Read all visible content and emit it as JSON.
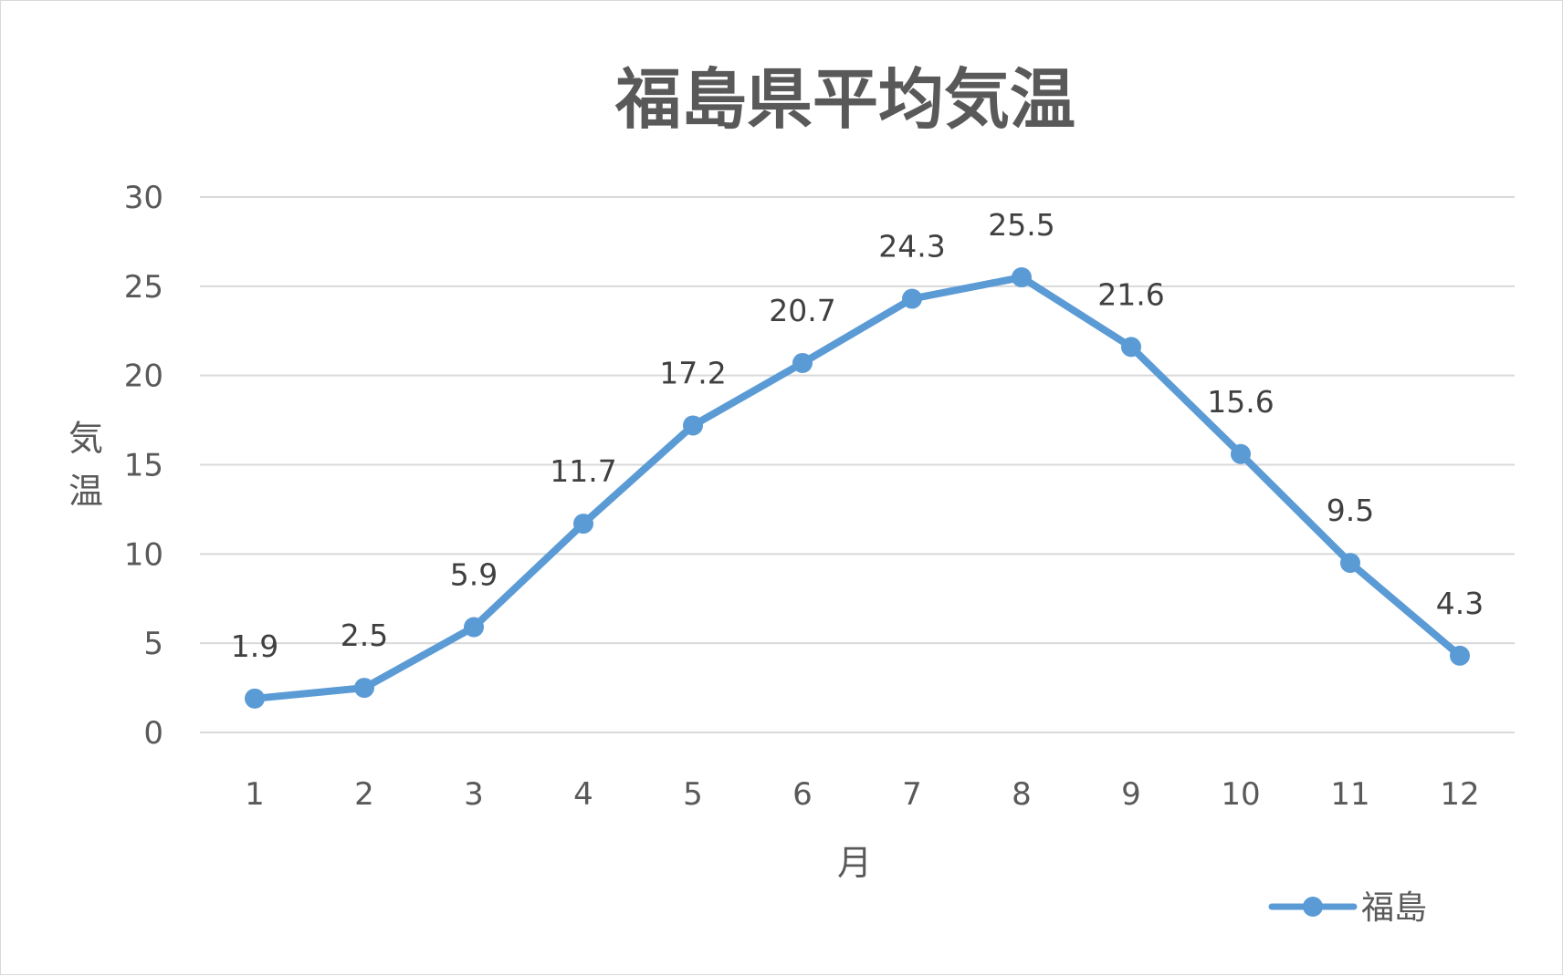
{
  "chart_data": {
    "type": "line",
    "title": "福島県平均気温",
    "xlabel": "月",
    "ylabel": "気温",
    "categories": [
      "1",
      "2",
      "3",
      "4",
      "5",
      "6",
      "7",
      "8",
      "9",
      "10",
      "11",
      "12"
    ],
    "series": [
      {
        "name": "福島",
        "values": [
          1.9,
          2.5,
          5.9,
          11.7,
          17.2,
          20.7,
          24.3,
          25.5,
          21.6,
          15.6,
          9.5,
          4.3
        ],
        "data_labels": [
          "1.9",
          "2.5",
          "5.9",
          "11.7",
          "17.2",
          "20.7",
          "24.3",
          "25.5",
          "21.6",
          "15.6",
          "9.5",
          "4.3"
        ],
        "color": "#5b9bd5"
      }
    ],
    "ylim": [
      0,
      30
    ],
    "yticks": [
      0,
      5,
      10,
      15,
      20,
      25,
      30
    ],
    "ytick_labels": [
      "0",
      "5",
      "10",
      "15",
      "20",
      "25",
      "30"
    ],
    "grid": true,
    "legend": "bottom-right",
    "colors": {
      "gridline": "#d9d9d9",
      "text": "#595959",
      "data_label": "#404040"
    }
  }
}
